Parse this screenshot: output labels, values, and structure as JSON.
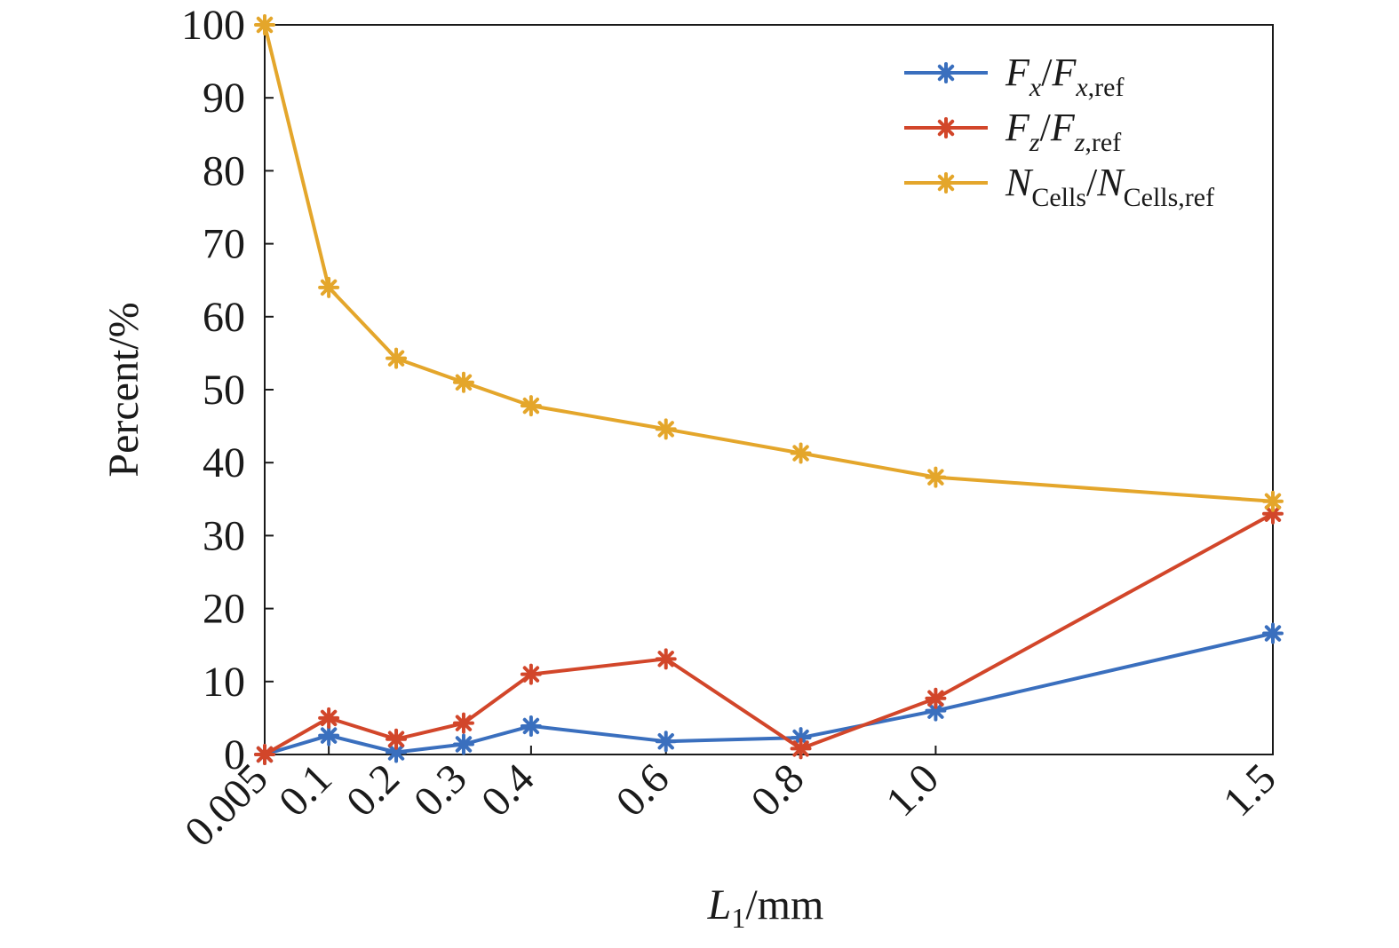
{
  "chart_data": {
    "type": "line",
    "xlabel": {
      "symbol": "L",
      "sub": "1",
      "unit": "/mm"
    },
    "ylabel": "Percent/%",
    "x_categories": [
      "0.005",
      "0.1",
      "0.2",
      "0.3",
      "0.4",
      "0.6",
      "0.8",
      "1.0",
      "1.5"
    ],
    "x_values": [
      0.005,
      0.1,
      0.2,
      0.3,
      0.4,
      0.6,
      0.8,
      1.0,
      1.5
    ],
    "xlim": [
      0.005,
      1.5
    ],
    "ylim": [
      0,
      100
    ],
    "y_ticks": [
      "0",
      "10",
      "20",
      "30",
      "40",
      "50",
      "60",
      "70",
      "80",
      "90",
      "100"
    ],
    "y_tick_values": [
      0,
      10,
      20,
      30,
      40,
      50,
      60,
      70,
      80,
      90,
      100
    ],
    "grid": false,
    "legend_position": "top-right",
    "marker": "asterisk",
    "series": [
      {
        "key": "fx",
        "legend": {
          "num": "F",
          "num_sub": "x",
          "den": "F",
          "den_sub": "x,ref"
        },
        "color": "#3a6fbe",
        "values": [
          0,
          2.6,
          0.3,
          1.4,
          3.9,
          1.8,
          2.3,
          6.0,
          16.6
        ]
      },
      {
        "key": "fz",
        "legend": {
          "num": "F",
          "num_sub": "z",
          "den": "F",
          "den_sub": "z,ref"
        },
        "color": "#d2462a",
        "values": [
          0,
          5.0,
          2.1,
          4.3,
          11.0,
          13.1,
          0.8,
          7.7,
          33.0
        ]
      },
      {
        "key": "ncells",
        "legend": {
          "num": "N",
          "num_sub": "Cells",
          "den": "N",
          "den_sub": "Cells,ref"
        },
        "color": "#e4a62b",
        "values": [
          100,
          64.0,
          54.3,
          51.0,
          47.8,
          44.6,
          41.3,
          38.0,
          34.7
        ]
      }
    ]
  }
}
